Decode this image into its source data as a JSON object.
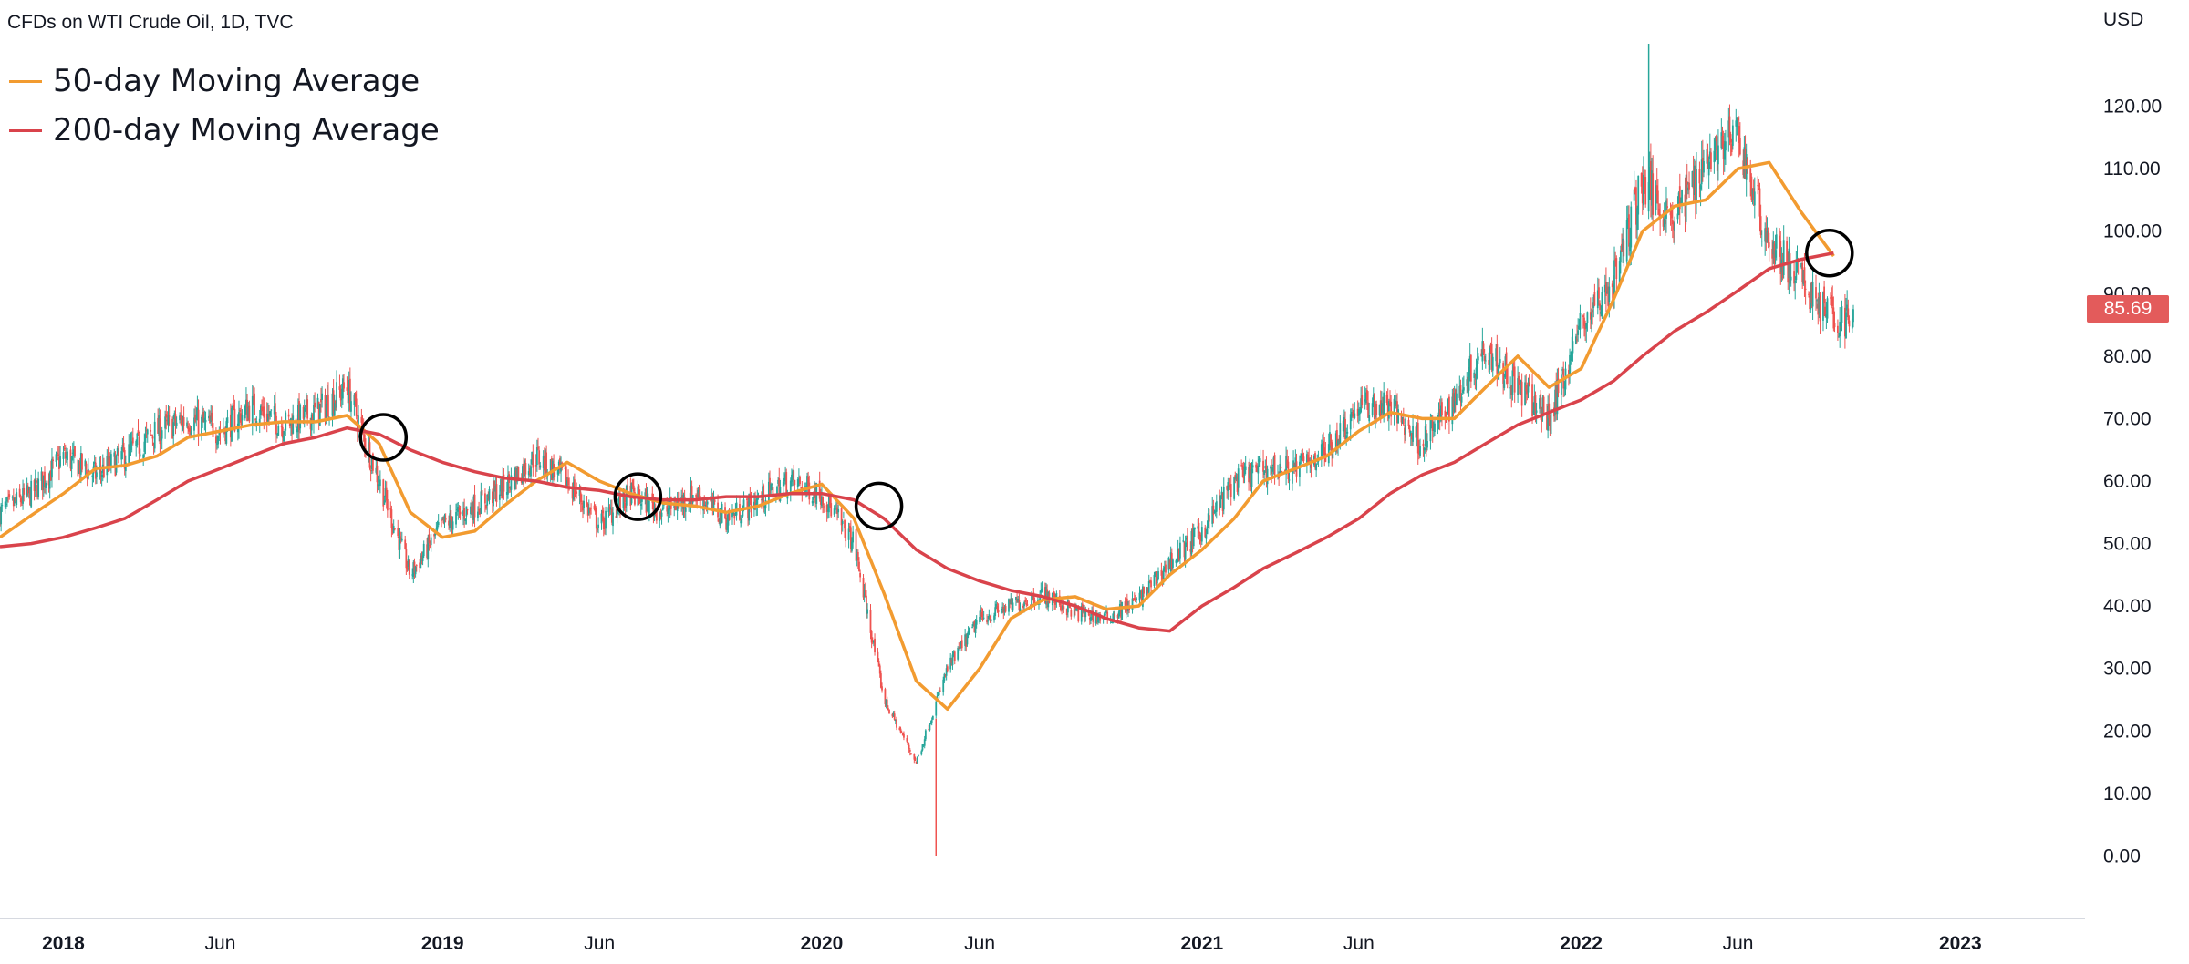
{
  "title": "CFDs on WTI Crude Oil, 1D, TVC",
  "legend": [
    {
      "label": "50-day Moving Average",
      "color": "#f29b30"
    },
    {
      "label": "200-day Moving Average",
      "color": "#d9434b"
    }
  ],
  "currency": "USD",
  "last_price": {
    "value": 85.69,
    "label": "85.69",
    "color": "#e35b5b"
  },
  "colors": {
    "up": "#26a69a",
    "down": "#ef5350",
    "ma50": "#f29b30",
    "ma200": "#d9434b",
    "circle": "#000000"
  },
  "chart_data": {
    "type": "line",
    "ylim": [
      -10,
      137
    ],
    "xlim": [
      "2017-11-01",
      "2023-05-01"
    ],
    "y_ticks": [
      {
        "value": 0,
        "label": "0.00"
      },
      {
        "value": 10,
        "label": "10.00"
      },
      {
        "value": 20,
        "label": "20.00"
      },
      {
        "value": 30,
        "label": "30.00"
      },
      {
        "value": 40,
        "label": "40.00"
      },
      {
        "value": 50,
        "label": "50.00"
      },
      {
        "value": 60,
        "label": "60.00"
      },
      {
        "value": 70,
        "label": "70.00"
      },
      {
        "value": 80,
        "label": "80.00"
      },
      {
        "value": 90,
        "label": "90.00"
      },
      {
        "value": 100,
        "label": "100.00"
      },
      {
        "value": 110,
        "label": "110.00"
      },
      {
        "value": 120,
        "label": "120.00"
      }
    ],
    "x_ticks": [
      {
        "date": "2018-01-01",
        "label": "2018",
        "bold": true
      },
      {
        "date": "2018-06-01",
        "label": "Jun",
        "bold": false
      },
      {
        "date": "2019-01-01",
        "label": "2019",
        "bold": true
      },
      {
        "date": "2019-06-01",
        "label": "Jun",
        "bold": false
      },
      {
        "date": "2020-01-01",
        "label": "2020",
        "bold": true
      },
      {
        "date": "2020-06-01",
        "label": "Jun",
        "bold": false
      },
      {
        "date": "2021-01-01",
        "label": "2021",
        "bold": true
      },
      {
        "date": "2021-06-01",
        "label": "Jun",
        "bold": false
      },
      {
        "date": "2022-01-01",
        "label": "2022",
        "bold": true
      },
      {
        "date": "2022-06-01",
        "label": "Jun",
        "bold": false
      },
      {
        "date": "2023-01-01",
        "label": "2023",
        "bold": true
      }
    ],
    "series": [
      {
        "name": "50-day Moving Average",
        "key": "ma50",
        "points": [
          [
            "2017-11-01",
            51
          ],
          [
            "2017-12-01",
            54.5
          ],
          [
            "2018-01-01",
            58
          ],
          [
            "2018-02-01",
            62
          ],
          [
            "2018-03-01",
            62.5
          ],
          [
            "2018-04-01",
            64
          ],
          [
            "2018-05-01",
            67
          ],
          [
            "2018-06-01",
            68
          ],
          [
            "2018-07-01",
            69
          ],
          [
            "2018-08-01",
            69.5
          ],
          [
            "2018-09-01",
            69.5
          ],
          [
            "2018-10-01",
            70.5
          ],
          [
            "2018-11-01",
            66
          ],
          [
            "2018-12-01",
            55
          ],
          [
            "2019-01-01",
            51
          ],
          [
            "2019-02-01",
            52
          ],
          [
            "2019-03-01",
            56
          ],
          [
            "2019-04-01",
            60
          ],
          [
            "2019-05-01",
            63
          ],
          [
            "2019-06-01",
            60
          ],
          [
            "2019-07-01",
            58
          ],
          [
            "2019-08-01",
            56.5
          ],
          [
            "2019-09-01",
            56
          ],
          [
            "2019-10-01",
            55
          ],
          [
            "2019-11-01",
            56
          ],
          [
            "2019-12-01",
            58
          ],
          [
            "2020-01-01",
            59.5
          ],
          [
            "2020-02-01",
            54
          ],
          [
            "2020-03-01",
            42
          ],
          [
            "2020-04-01",
            28
          ],
          [
            "2020-05-01",
            23.5
          ],
          [
            "2020-06-01",
            30
          ],
          [
            "2020-07-01",
            38
          ],
          [
            "2020-08-01",
            41
          ],
          [
            "2020-09-01",
            41.5
          ],
          [
            "2020-10-01",
            39.5
          ],
          [
            "2020-11-01",
            40
          ],
          [
            "2020-12-01",
            45
          ],
          [
            "2021-01-01",
            49
          ],
          [
            "2021-02-01",
            54
          ],
          [
            "2021-03-01",
            60
          ],
          [
            "2021-04-01",
            62
          ],
          [
            "2021-05-01",
            64
          ],
          [
            "2021-06-01",
            68
          ],
          [
            "2021-07-01",
            71
          ],
          [
            "2021-08-01",
            70
          ],
          [
            "2021-09-01",
            70
          ],
          [
            "2021-10-01",
            75
          ],
          [
            "2021-11-01",
            80
          ],
          [
            "2021-12-01",
            75
          ],
          [
            "2022-01-01",
            78
          ],
          [
            "2022-02-01",
            89
          ],
          [
            "2022-03-01",
            100
          ],
          [
            "2022-04-01",
            104
          ],
          [
            "2022-05-01",
            105
          ],
          [
            "2022-06-01",
            110
          ],
          [
            "2022-07-01",
            111
          ],
          [
            "2022-08-01",
            103
          ],
          [
            "2022-09-01",
            96
          ]
        ]
      },
      {
        "name": "200-day Moving Average",
        "key": "ma200",
        "points": [
          [
            "2017-11-01",
            49.5
          ],
          [
            "2017-12-01",
            50
          ],
          [
            "2018-01-01",
            51
          ],
          [
            "2018-02-01",
            52.5
          ],
          [
            "2018-03-01",
            54
          ],
          [
            "2018-04-01",
            57
          ],
          [
            "2018-05-01",
            60
          ],
          [
            "2018-06-01",
            62
          ],
          [
            "2018-07-01",
            64
          ],
          [
            "2018-08-01",
            66
          ],
          [
            "2018-09-01",
            67
          ],
          [
            "2018-10-01",
            68.5
          ],
          [
            "2018-11-01",
            67.5
          ],
          [
            "2018-12-01",
            65
          ],
          [
            "2019-01-01",
            63
          ],
          [
            "2019-02-01",
            61.5
          ],
          [
            "2019-03-01",
            60.5
          ],
          [
            "2019-04-01",
            60
          ],
          [
            "2019-05-01",
            59
          ],
          [
            "2019-06-01",
            58.5
          ],
          [
            "2019-07-01",
            57.5
          ],
          [
            "2019-08-01",
            57
          ],
          [
            "2019-09-01",
            57
          ],
          [
            "2019-10-01",
            57.5
          ],
          [
            "2019-11-01",
            57.5
          ],
          [
            "2019-12-01",
            58
          ],
          [
            "2020-01-01",
            58
          ],
          [
            "2020-02-01",
            57
          ],
          [
            "2020-03-01",
            54
          ],
          [
            "2020-04-01",
            49
          ],
          [
            "2020-05-01",
            46
          ],
          [
            "2020-06-01",
            44
          ],
          [
            "2020-07-01",
            42.5
          ],
          [
            "2020-08-01",
            41.5
          ],
          [
            "2020-09-01",
            40
          ],
          [
            "2020-10-01",
            38
          ],
          [
            "2020-11-01",
            36.5
          ],
          [
            "2020-12-01",
            36
          ],
          [
            "2021-01-01",
            40
          ],
          [
            "2021-02-01",
            43
          ],
          [
            "2021-03-01",
            46
          ],
          [
            "2021-04-01",
            48.5
          ],
          [
            "2021-05-01",
            51
          ],
          [
            "2021-06-01",
            54
          ],
          [
            "2021-07-01",
            58
          ],
          [
            "2021-08-01",
            61
          ],
          [
            "2021-09-01",
            63
          ],
          [
            "2021-10-01",
            66
          ],
          [
            "2021-11-01",
            69
          ],
          [
            "2021-12-01",
            71
          ],
          [
            "2022-01-01",
            73
          ],
          [
            "2022-02-01",
            76
          ],
          [
            "2022-03-01",
            80
          ],
          [
            "2022-04-01",
            84
          ],
          [
            "2022-05-01",
            87
          ],
          [
            "2022-06-01",
            90.5
          ],
          [
            "2022-07-01",
            94
          ],
          [
            "2022-08-01",
            95.5
          ],
          [
            "2022-09-01",
            96.5
          ]
        ]
      },
      {
        "name": "WTI Crude Oil",
        "key": "price",
        "style": "candles",
        "points": [
          [
            "2017-11-01",
            55
          ],
          [
            "2017-12-01",
            58
          ],
          [
            "2018-01-01",
            64
          ],
          [
            "2018-02-01",
            61
          ],
          [
            "2018-03-01",
            64
          ],
          [
            "2018-04-01",
            68
          ],
          [
            "2018-05-01",
            70
          ],
          [
            "2018-06-01",
            68
          ],
          [
            "2018-07-01",
            72
          ],
          [
            "2018-08-01",
            69
          ],
          [
            "2018-09-01",
            71
          ],
          [
            "2018-10-01",
            75
          ],
          [
            "2018-11-01",
            60
          ],
          [
            "2018-12-01",
            45
          ],
          [
            "2019-01-01",
            53
          ],
          [
            "2019-02-01",
            56
          ],
          [
            "2019-03-01",
            59
          ],
          [
            "2019-04-01",
            64
          ],
          [
            "2019-05-01",
            60
          ],
          [
            "2019-06-01",
            53
          ],
          [
            "2019-07-01",
            58
          ],
          [
            "2019-08-01",
            55
          ],
          [
            "2019-09-01",
            58
          ],
          [
            "2019-10-01",
            54
          ],
          [
            "2019-11-01",
            57
          ],
          [
            "2019-12-01",
            60
          ],
          [
            "2020-01-01",
            58
          ],
          [
            "2020-02-01",
            50
          ],
          [
            "2020-03-01",
            25
          ],
          [
            "2020-04-01",
            15
          ],
          [
            "2020-05-01",
            30
          ],
          [
            "2020-06-01",
            38
          ],
          [
            "2020-07-01",
            40
          ],
          [
            "2020-08-01",
            42
          ],
          [
            "2020-09-01",
            39
          ],
          [
            "2020-10-01",
            38
          ],
          [
            "2020-11-01",
            41
          ],
          [
            "2020-12-01",
            47
          ],
          [
            "2021-01-01",
            52
          ],
          [
            "2021-02-01",
            60
          ],
          [
            "2021-03-01",
            62
          ],
          [
            "2021-04-01",
            62
          ],
          [
            "2021-05-01",
            65
          ],
          [
            "2021-06-01",
            72
          ],
          [
            "2021-07-01",
            72
          ],
          [
            "2021-08-01",
            66
          ],
          [
            "2021-09-01",
            73
          ],
          [
            "2021-10-01",
            82
          ],
          [
            "2021-11-01",
            75
          ],
          [
            "2021-12-01",
            70
          ],
          [
            "2022-01-01",
            85
          ],
          [
            "2022-02-01",
            92
          ],
          [
            "2022-03-01",
            108
          ],
          [
            "2022-04-01",
            102
          ],
          [
            "2022-05-01",
            112
          ],
          [
            "2022-06-01",
            115
          ],
          [
            "2022-07-01",
            98
          ],
          [
            "2022-08-01",
            92
          ],
          [
            "2022-09-01",
            86
          ],
          [
            "2022-09-20",
            85.69
          ]
        ]
      }
    ],
    "crossover_markers": [
      [
        "2018-11-05",
        67
      ],
      [
        "2019-07-08",
        57.5
      ],
      [
        "2020-02-25",
        56
      ],
      [
        "2022-08-28",
        96.5
      ]
    ]
  }
}
